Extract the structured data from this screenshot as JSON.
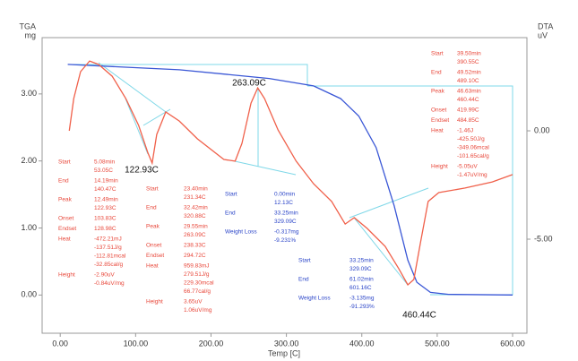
{
  "chart_data": {
    "type": "line",
    "y_title_top": "TGA",
    "y_title_unit": "mg",
    "y2_title_top": "DTA",
    "y2_title_unit": "uV",
    "x_label": "Temp [C]",
    "xlim": [
      -24,
      619
    ],
    "xticks": [
      {
        "value": 0,
        "label": "0.00"
      },
      {
        "value": 100,
        "label": "100.00"
      },
      {
        "value": 200,
        "label": "200.00"
      },
      {
        "value": 300,
        "label": "300.00"
      },
      {
        "value": 400,
        "label": "400.00"
      },
      {
        "value": 500,
        "label": "500.00"
      },
      {
        "value": 600,
        "label": "600.00"
      }
    ],
    "ylim": [
      -0.57,
      3.84
    ],
    "yticks": [
      {
        "value": 0,
        "label": "0.00"
      },
      {
        "value": 1,
        "label": "1.00"
      },
      {
        "value": 2,
        "label": "2.00"
      },
      {
        "value": 3,
        "label": "3.00"
      }
    ],
    "y2lim": [
      -9.34,
      4.3
    ],
    "y2ticks": [
      {
        "value": 0,
        "label": "0.00"
      },
      {
        "value": -5,
        "label": "-5.00"
      }
    ],
    "series": [
      {
        "color": "#3a57d6",
        "x": [
          10,
          158,
          277,
          336,
          372,
          396,
          419,
          443,
          461,
          473,
          491,
          515,
          600
        ],
        "values": [
          3.44,
          3.36,
          3.23,
          3.12,
          2.93,
          2.67,
          2.2,
          1.33,
          0.52,
          0.19,
          0.04,
          0.01,
          0
        ]
      },
      {
        "color": "#f0604a",
        "axis": "y2",
        "x": [
          12,
          18,
          27,
          39,
          51,
          69,
          87,
          104,
          116,
          122,
          128,
          140,
          158,
          182,
          217,
          232,
          241,
          253,
          262,
          271,
          289,
          313,
          336,
          360,
          378,
          390,
          407,
          431,
          449,
          461,
          469,
          478,
          488,
          502,
          537,
          573,
          600
        ],
        "values": [
          0.0,
          1.49,
          2.73,
          3.22,
          3.06,
          2.52,
          1.49,
          0.25,
          -0.99,
          -1.49,
          -0.17,
          0.87,
          0.45,
          -0.37,
          -1.32,
          -1.4,
          -0.58,
          1.28,
          1.98,
          1.49,
          0.04,
          -1.4,
          -2.44,
          -3.26,
          -4.3,
          -4.01,
          -4.5,
          -5.33,
          -6.36,
          -7.11,
          -6.86,
          -5.12,
          -3.26,
          -2.85,
          -2.64,
          -2.36,
          -2.02
        ]
      }
    ],
    "peak_labels": [
      "122.93C",
      "263.09C",
      "460.44C"
    ],
    "annotations": [
      {
        "color": "#e8473a",
        "rows": [
          {
            "label": "Start",
            "values": [
              "5.08min",
              "53.05C"
            ]
          },
          {
            "label": "End",
            "values": [
              "14.19min",
              "140.47C"
            ]
          },
          {
            "label": "Peak",
            "values": [
              "12.49min",
              "122.93C"
            ]
          },
          {
            "label": "Onset",
            "values": [
              "103.83C"
            ]
          },
          {
            "label": "Endset",
            "values": [
              "128.98C"
            ]
          },
          {
            "label": "Heat",
            "values": [
              "-472.21mJ",
              "-137.51J/g",
              "-112.81mcal",
              "-32.85cal/g"
            ]
          },
          {
            "label": "Height",
            "values": [
              "-2.90uV",
              "-0.84uV/mg"
            ]
          }
        ]
      },
      {
        "color": "#e8473a",
        "rows": [
          {
            "label": "Start",
            "values": [
              "23.40min",
              "231.34C"
            ]
          },
          {
            "label": "End",
            "values": [
              "32.42min",
              "320.88C"
            ]
          },
          {
            "label": "Peak",
            "values": [
              "29.55min",
              "263.09C"
            ]
          },
          {
            "label": "Onset",
            "values": [
              "238.33C"
            ]
          },
          {
            "label": "Endset",
            "values": [
              "294.72C"
            ]
          },
          {
            "label": "Heat",
            "values": [
              "959.83mJ",
              "279.51J/g",
              "229.30mcal",
              "66.77cal/g"
            ]
          },
          {
            "label": "Height",
            "values": [
              "3.65uV",
              "1.06uV/mg"
            ]
          }
        ]
      },
      {
        "color": "#2a44c8",
        "rows": [
          {
            "label": "Start",
            "values": [
              "0.00min",
              "12.13C"
            ]
          },
          {
            "label": "End",
            "values": [
              "33.25min",
              "329.09C"
            ]
          },
          {
            "label": "Weight Loss",
            "values": [
              "-0.317mg",
              "-9.231%"
            ]
          }
        ]
      },
      {
        "color": "#2a44c8",
        "rows": [
          {
            "label": "Start",
            "values": [
              "33.25min",
              "329.09C"
            ]
          },
          {
            "label": "End",
            "values": [
              "61.02min",
              "601.16C"
            ]
          },
          {
            "label": "Weight Loss",
            "values": [
              "-3.135mg",
              "-91.293%"
            ]
          }
        ]
      },
      {
        "color": "#e8473a",
        "rows": [
          {
            "label": "Start",
            "values": [
              "39.50min",
              "390.55C"
            ]
          },
          {
            "label": "End",
            "values": [
              "49.52min",
              "489.10C"
            ]
          },
          {
            "label": "Peak",
            "values": [
              "46.63min",
              "460.44C"
            ]
          },
          {
            "label": "Onset",
            "values": [
              "419.99C"
            ]
          },
          {
            "label": "Endset",
            "values": [
              "484.85C"
            ]
          },
          {
            "label": "Heat",
            "values": [
              "-1.46J",
              "-425.50J/g",
              "-349.06mcal",
              "-101.65cal/g"
            ]
          },
          {
            "label": "Height",
            "values": [
              "-5.05uV",
              "-1.47uV/mg"
            ]
          }
        ]
      }
    ]
  }
}
